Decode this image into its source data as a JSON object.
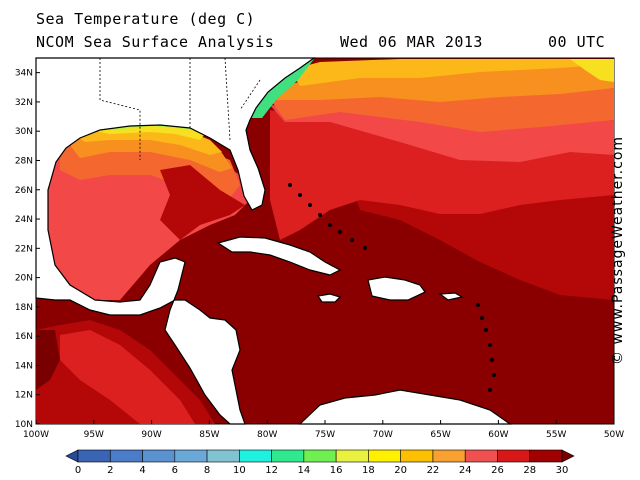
{
  "header": {
    "title": "Sea Temperature (deg C)",
    "subtitle": "NCOM Sea Surface Analysis",
    "date": "Wed 06 MAR 2013",
    "time": "00 UTC"
  },
  "credit": "© www.PassageWeather.com",
  "map": {
    "lat_labels": [
      "34N",
      "32N",
      "30N",
      "28N",
      "26N",
      "24N",
      "22N",
      "20N",
      "18N",
      "16N",
      "14N",
      "12N",
      "10N"
    ],
    "lon_labels": [
      "100W",
      "95W",
      "90W",
      "85W",
      "80W",
      "75W",
      "70W",
      "65W",
      "60W",
      "55W",
      "50W"
    ],
    "lat_range": [
      10,
      35
    ],
    "lon_range": [
      -100,
      -50
    ]
  },
  "colorbar": {
    "labels": [
      "0",
      "2",
      "4",
      "6",
      "8",
      "10",
      "12",
      "14",
      "16",
      "18",
      "20",
      "22",
      "24",
      "26",
      "28",
      "30"
    ],
    "colors": [
      "#2a4a9a",
      "#3a64b4",
      "#4a7cc8",
      "#5a92d0",
      "#6aa8d8",
      "#80c4d4",
      "#20f0e0",
      "#30e890",
      "#70f050",
      "#e8f040",
      "#fff000",
      "#fcc000",
      "#f8a030",
      "#f05050",
      "#d81818",
      "#a00000",
      "#780000"
    ]
  },
  "zones": {
    "land": "#ffffff",
    "t28_30": "#8a0000",
    "t26_28": "#b40808",
    "t24_26": "#dc2020",
    "t22_24": "#f24848",
    "t20_22": "#f46830",
    "t18_20": "#f89020",
    "t16_18": "#fbb818",
    "t14_16": "#f6e020",
    "t12_14": "#b8f040",
    "t10_12": "#40e080"
  }
}
